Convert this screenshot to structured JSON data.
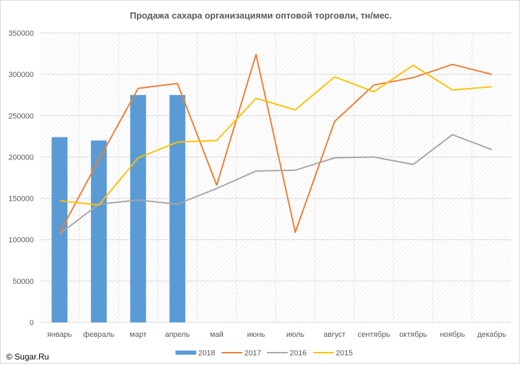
{
  "chart_data": {
    "type": "bar+line",
    "title": "Продажа сахара организациями оптовой торговли, тн/мес.",
    "categories": [
      "январь",
      "февраль",
      "март",
      "апрель",
      "май",
      "июнь",
      "июль",
      "август",
      "сентябрь",
      "октябрь",
      "ноябрь",
      "декабрь"
    ],
    "ylim": [
      0,
      350000
    ],
    "yticks": [
      "0",
      "50000",
      "100000",
      "150000",
      "200000",
      "250000",
      "300000",
      "350000"
    ],
    "grid": true,
    "legend_position": "bottom",
    "series": [
      {
        "name": "2018",
        "kind": "bar",
        "color": "#5b9bd5",
        "values": [
          224000,
          220000,
          275000,
          275000,
          null,
          null,
          null,
          null,
          null,
          null,
          null,
          null
        ]
      },
      {
        "name": "2017",
        "kind": "line",
        "color": "#ed7d31",
        "values": [
          108000,
          197000,
          283000,
          289000,
          166000,
          324000,
          109000,
          243000,
          287000,
          296000,
          312000,
          300000
        ]
      },
      {
        "name": "2016",
        "kind": "line",
        "color": "#a5a5a5",
        "values": [
          107000,
          143000,
          148000,
          143000,
          162000,
          183000,
          184000,
          199000,
          200000,
          191000,
          227000,
          209000
        ]
      },
      {
        "name": "2015",
        "kind": "line",
        "color": "#ffc000",
        "values": [
          147000,
          142000,
          199000,
          218000,
          220000,
          271000,
          257000,
          297000,
          279000,
          311000,
          281000,
          285000
        ]
      }
    ]
  },
  "copyright": "© Sugar.Ru"
}
